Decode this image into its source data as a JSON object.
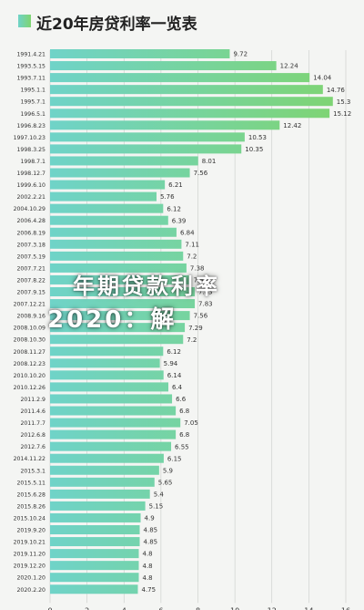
{
  "header": {
    "title": "近20年房贷利率一览表"
  },
  "overlay": {
    "line1": "年期贷款利率",
    "line2": "2020：解"
  },
  "colors": {
    "bar_start": "#6fd3c8",
    "bar_end": "#7fd470"
  },
  "chart_data": {
    "type": "bar",
    "orientation": "horizontal",
    "title": "近20年房贷利率一览表",
    "xlabel": "",
    "ylabel": "",
    "xlim": [
      0,
      16
    ],
    "xticks": [
      "0",
      "2",
      "4",
      "6",
      "8",
      "10",
      "12",
      "14",
      "16"
    ],
    "grid": true,
    "categories": [
      "1991.4.21",
      "1993.5.15",
      "1993.7.11",
      "1995.1.1",
      "1995.7.1",
      "1996.5.1",
      "1996.8.23",
      "1997.10.23",
      "1998.3.25",
      "1998.7.1",
      "1998.12.7",
      "1999.6.10",
      "2002.2.21",
      "2004.10.29",
      "2006.4.28",
      "2006.8.19",
      "2007.3.18",
      "2007.5.19",
      "2007.7.21",
      "2007.8.22",
      "2007.9.15",
      "2007.12.21",
      "2008.9.16",
      "2008.10.09",
      "2008.10.30",
      "2008.11.27",
      "2008.12.23",
      "2010.10.20",
      "2010.12.26",
      "2011.2.9",
      "2011.4.6",
      "2011.7.7",
      "2012.6.8",
      "2012.7.6",
      "2014.11.22",
      "2015.3.1",
      "2015.5.11",
      "2015.6.28",
      "2015.8.26",
      "2015.10.24",
      "2019.9.20",
      "2019.10.21",
      "2019.11.20",
      "2019.12.20",
      "2020.1.20",
      "2020.2.20"
    ],
    "values": [
      9.72,
      12.24,
      14.04,
      14.76,
      15.3,
      15.12,
      12.42,
      10.53,
      10.35,
      8.01,
      7.56,
      6.21,
      5.76,
      6.12,
      6.39,
      6.84,
      7.11,
      7.2,
      7.38,
      7.56,
      7.83,
      7.83,
      7.56,
      7.29,
      7.2,
      6.12,
      5.94,
      6.14,
      6.4,
      6.6,
      6.8,
      7.05,
      6.8,
      6.55,
      6.15,
      5.9,
      5.65,
      5.4,
      5.15,
      4.9,
      4.85,
      4.85,
      4.8,
      4.8,
      4.8,
      4.75
    ],
    "data_labels": [
      "9.72",
      "12.24",
      "14.04",
      "14.76",
      "15.3",
      "15.12",
      "12.42",
      "10.53",
      "10.35",
      "8.01",
      "7.56",
      "6.21",
      "5.76",
      "6.12",
      "6.39",
      "6.84",
      "7.11",
      "7.2",
      "7.38",
      "7.56",
      "7.83",
      "7.83",
      "7.56",
      "7.29",
      "7.2",
      "6.12",
      "5.94",
      "6.14",
      "6.4",
      "6.6",
      "6.8",
      "7.05",
      "6.8",
      "6.55",
      "6.15",
      "5.9",
      "5.65",
      "5.4",
      "5.15",
      "4.9",
      "4.85",
      "4.85",
      "4.8",
      "4.8",
      "4.8",
      "4.75"
    ]
  }
}
